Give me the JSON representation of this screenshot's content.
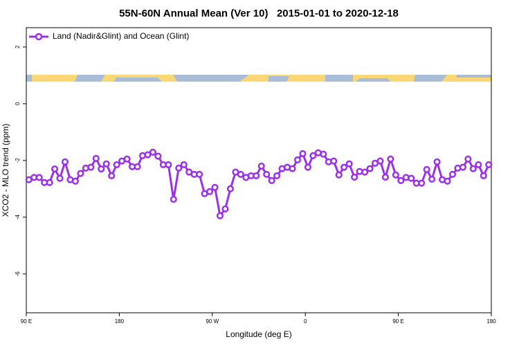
{
  "chart_data": {
    "type": "line",
    "title": "55N-60N Annual Mean (Ver 10)   2015-01-01 to 2020-12-18",
    "x_label": "Longitude (deg E)",
    "y_label": "XCO2 - MLO trend (ppm)",
    "xlim": [
      90,
      540
    ],
    "ylim": [
      -7.37,
      2.68
    ],
    "xticks": [
      {
        "value": 90,
        "label": "90 E"
      },
      180,
      {
        "value": 270,
        "label": "90 W"
      },
      {
        "value": 360,
        "label": "0"
      },
      {
        "value": 450,
        "label": "90 E"
      },
      {
        "value": 540,
        "label": "180"
      }
    ],
    "yticks": [
      2,
      0,
      -2,
      -4,
      -6
    ],
    "legend": "upper left",
    "x": [
      92.5,
      97.5,
      102.5,
      107.5,
      112.5,
      117.5,
      122.5,
      127.5,
      132.5,
      137.5,
      142.5,
      147.5,
      152.5,
      157.5,
      162.5,
      167.5,
      172.5,
      177.5,
      182.5,
      187.5,
      192.5,
      197.5,
      202.5,
      207.5,
      212.5,
      217.5,
      222.5,
      227.5,
      232.5,
      237.5,
      242.5,
      247.5,
      252.5,
      257.5,
      262.5,
      267.5,
      272.5,
      277.5,
      282.5,
      287.5,
      292.5,
      297.5,
      302.5,
      307.5,
      312.5,
      317.5,
      322.5,
      327.5,
      332.5,
      337.5,
      342.5,
      347.5,
      352.5,
      357.5,
      362.5,
      367.5,
      372.5,
      377.5,
      382.5,
      387.5,
      392.5,
      397.5,
      402.5,
      407.5,
      412.5,
      417.5,
      422.5,
      427.5,
      432.5,
      437.5,
      442.5,
      447.5,
      452.5,
      457.5,
      462.5,
      467.5,
      472.5,
      477.5,
      482.5,
      487.5,
      492.5,
      497.5,
      502.5,
      507.5,
      512.5,
      517.5,
      522.5,
      527.5,
      532.5,
      537.5
    ],
    "series": [
      {
        "name": "Land (Nadir&Glint) and Ocean (Glint)",
        "color": "#9b30e6",
        "values": [
          -2.68,
          -2.6,
          -2.6,
          -2.78,
          -2.78,
          -2.3,
          -2.63,
          -2.05,
          -2.68,
          -2.73,
          -2.46,
          -2.27,
          -2.24,
          -1.93,
          -2.3,
          -2.12,
          -2.54,
          -2.15,
          -2.02,
          -1.95,
          -2.22,
          -2.22,
          -1.83,
          -1.8,
          -1.71,
          -1.85,
          -2.15,
          -2.15,
          -3.37,
          -2.27,
          -2.15,
          -2.41,
          -2.49,
          -2.49,
          -3.17,
          -3.1,
          -2.95,
          -3.95,
          -3.71,
          -3.0,
          -2.41,
          -2.49,
          -2.6,
          -2.54,
          -2.54,
          -2.2,
          -2.49,
          -2.71,
          -2.54,
          -2.29,
          -2.24,
          -2.29,
          -1.98,
          -1.76,
          -2.24,
          -1.83,
          -1.73,
          -1.78,
          -2.05,
          -2.02,
          -2.51,
          -2.24,
          -2.12,
          -2.59,
          -2.39,
          -2.41,
          -2.29,
          -2.1,
          -2.02,
          -2.59,
          -1.95,
          -2.51,
          -2.71,
          -2.6,
          -2.63,
          -2.8,
          -2.8,
          -2.32,
          -2.66,
          -2.05,
          -2.68,
          -2.73,
          -2.49,
          -2.27,
          -2.24,
          -1.95,
          -2.29,
          -2.15,
          -2.54,
          -2.15
        ]
      }
    ]
  }
}
